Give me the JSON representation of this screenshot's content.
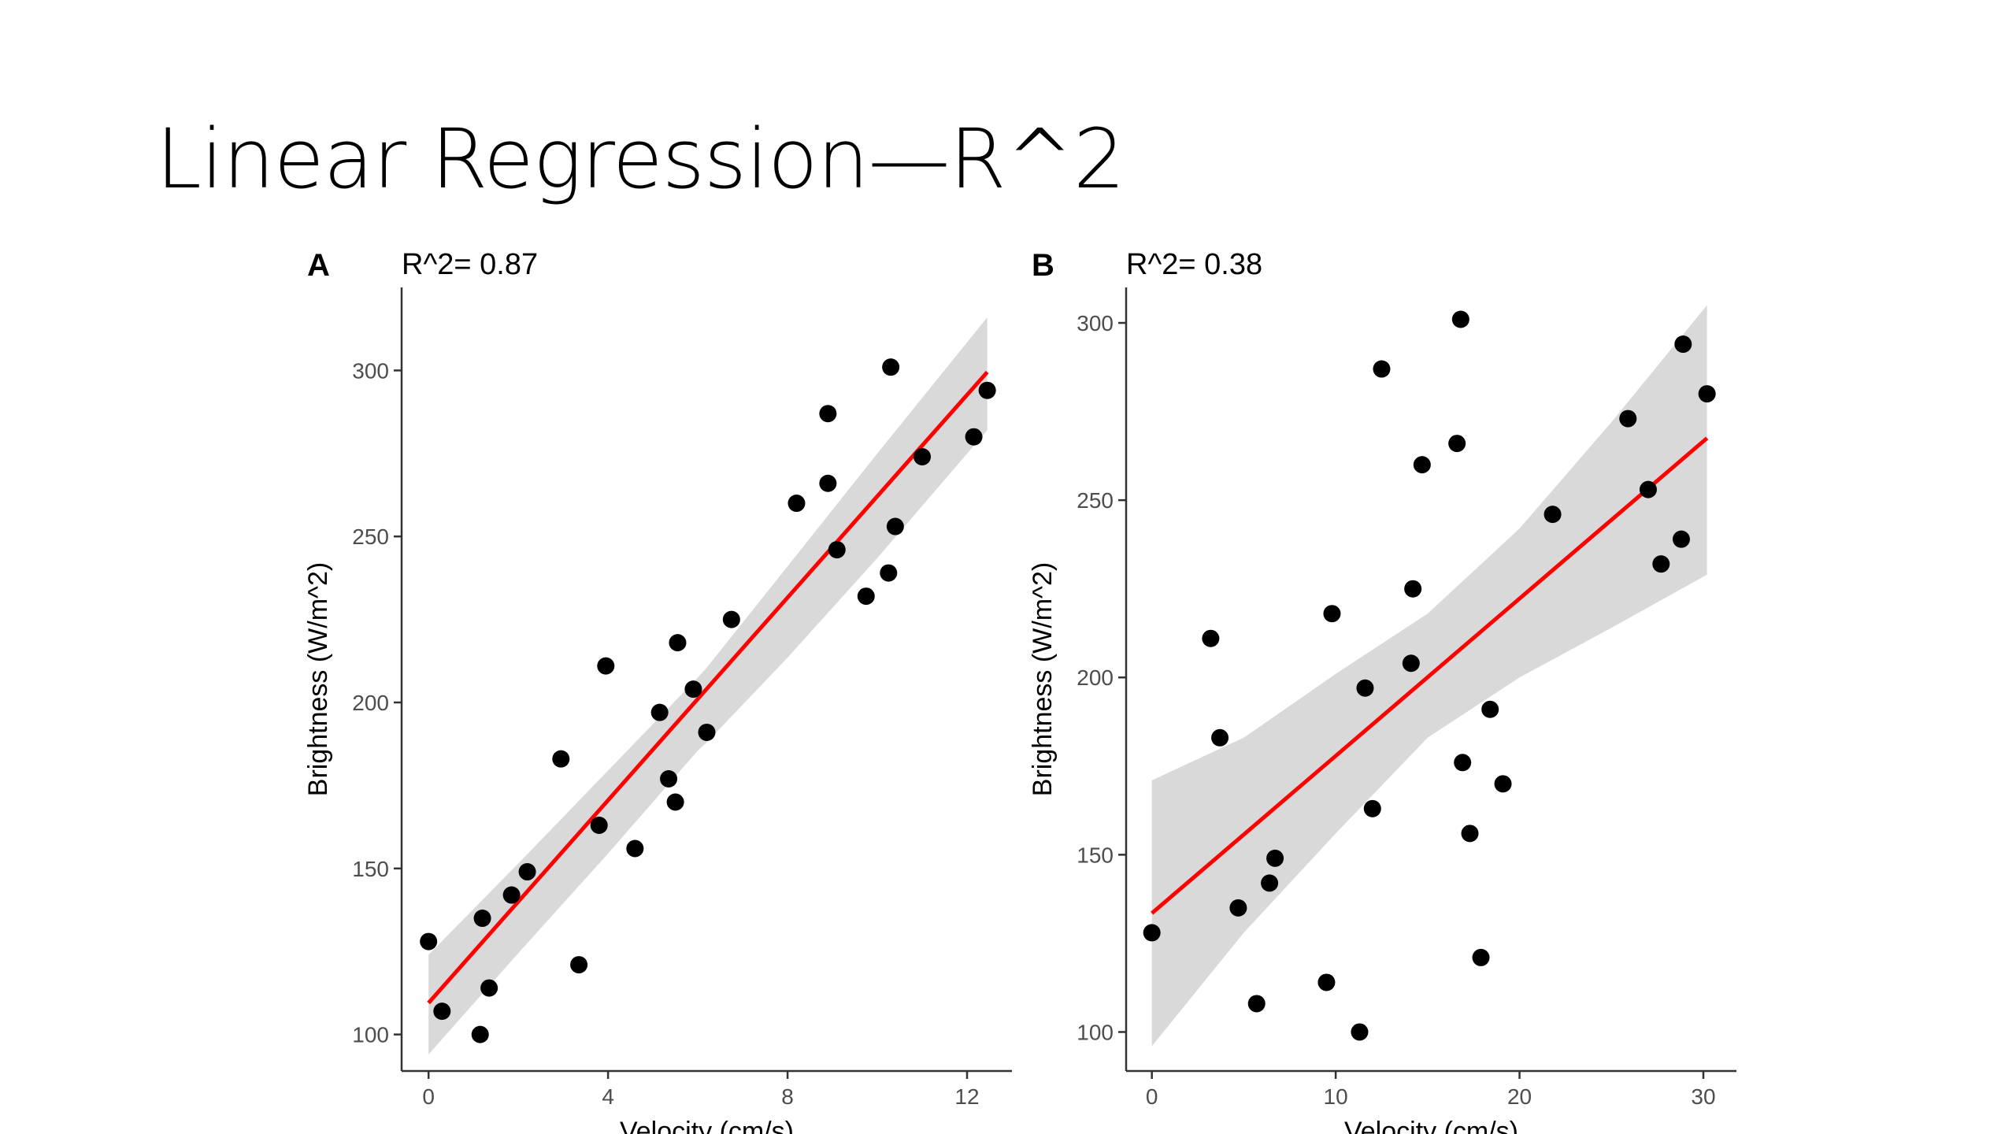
{
  "slide": {
    "title": "Linear Regression—R^2"
  },
  "colors": {
    "points": "#000000",
    "fit_line": "#ff0000",
    "confidence_band": "#d9d9d9",
    "axis": "#333333",
    "tick_label": "#4d4d4d"
  },
  "chart_data": [
    {
      "type": "scatter",
      "panel_label": "A",
      "title": "R^2= 0.87",
      "xlabel": "Velocity (cm/s)",
      "ylabel": "Brightness (W/m^2)",
      "xlim": [
        -0.6,
        13.0
      ],
      "ylim": [
        89,
        325
      ],
      "xticks": [
        0,
        4,
        8,
        12
      ],
      "yticks": [
        100,
        150,
        200,
        250,
        300
      ],
      "points": [
        {
          "x": 0.0,
          "y": 128
        },
        {
          "x": 0.3,
          "y": 107
        },
        {
          "x": 1.15,
          "y": 100
        },
        {
          "x": 1.2,
          "y": 135
        },
        {
          "x": 1.35,
          "y": 114
        },
        {
          "x": 1.85,
          "y": 142
        },
        {
          "x": 2.2,
          "y": 149
        },
        {
          "x": 2.95,
          "y": 183
        },
        {
          "x": 3.35,
          "y": 121
        },
        {
          "x": 3.8,
          "y": 163
        },
        {
          "x": 3.95,
          "y": 211
        },
        {
          "x": 4.6,
          "y": 156
        },
        {
          "x": 5.15,
          "y": 197
        },
        {
          "x": 5.35,
          "y": 177
        },
        {
          "x": 5.5,
          "y": 170
        },
        {
          "x": 5.55,
          "y": 218
        },
        {
          "x": 5.9,
          "y": 204
        },
        {
          "x": 6.2,
          "y": 191
        },
        {
          "x": 6.75,
          "y": 225
        },
        {
          "x": 8.2,
          "y": 260
        },
        {
          "x": 8.9,
          "y": 287
        },
        {
          "x": 8.9,
          "y": 266
        },
        {
          "x": 9.1,
          "y": 246
        },
        {
          "x": 9.75,
          "y": 232
        },
        {
          "x": 10.25,
          "y": 239
        },
        {
          "x": 10.3,
          "y": 301
        },
        {
          "x": 10.4,
          "y": 253
        },
        {
          "x": 11.0,
          "y": 274
        },
        {
          "x": 12.15,
          "y": 280
        },
        {
          "x": 12.45,
          "y": 294
        }
      ],
      "fit": {
        "x": [
          0.0,
          12.45
        ],
        "y": [
          109.5,
          299.5
        ]
      },
      "band": {
        "x": [
          0.0,
          2.0,
          4.0,
          6.0,
          6.2,
          8.0,
          10.0,
          12.45
        ],
        "upper": [
          124,
          151.5,
          179.5,
          207.5,
          210.5,
          241,
          275,
          316
        ],
        "lower": [
          94,
          124.5,
          154.5,
          185.5,
          188,
          213.5,
          243.5,
          282
        ]
      }
    },
    {
      "type": "scatter",
      "panel_label": "B",
      "title": "R^2= 0.38",
      "xlabel": "Velocity (cm/s)",
      "ylabel": "Brightness (W/m^2)",
      "xlim": [
        -1.4,
        31.8
      ],
      "ylim": [
        89,
        310
      ],
      "xticks": [
        0,
        10,
        20,
        30
      ],
      "yticks": [
        100,
        150,
        200,
        250,
        300
      ],
      "points": [
        {
          "x": 0.0,
          "y": 128
        },
        {
          "x": 3.2,
          "y": 211
        },
        {
          "x": 3.7,
          "y": 183
        },
        {
          "x": 4.7,
          "y": 135
        },
        {
          "x": 5.7,
          "y": 108
        },
        {
          "x": 6.4,
          "y": 142
        },
        {
          "x": 6.7,
          "y": 149
        },
        {
          "x": 9.5,
          "y": 114
        },
        {
          "x": 9.8,
          "y": 218
        },
        {
          "x": 11.3,
          "y": 100
        },
        {
          "x": 11.6,
          "y": 197
        },
        {
          "x": 12.0,
          "y": 163
        },
        {
          "x": 12.5,
          "y": 287
        },
        {
          "x": 14.1,
          "y": 204
        },
        {
          "x": 14.2,
          "y": 225
        },
        {
          "x": 14.7,
          "y": 260
        },
        {
          "x": 16.6,
          "y": 266
        },
        {
          "x": 16.8,
          "y": 301
        },
        {
          "x": 16.9,
          "y": 176
        },
        {
          "x": 17.3,
          "y": 156
        },
        {
          "x": 17.9,
          "y": 121
        },
        {
          "x": 18.4,
          "y": 191
        },
        {
          "x": 19.1,
          "y": 170
        },
        {
          "x": 21.8,
          "y": 246
        },
        {
          "x": 25.9,
          "y": 273
        },
        {
          "x": 27.0,
          "y": 253
        },
        {
          "x": 27.7,
          "y": 232
        },
        {
          "x": 28.8,
          "y": 239
        },
        {
          "x": 28.9,
          "y": 294
        },
        {
          "x": 30.2,
          "y": 280
        }
      ],
      "fit": {
        "x": [
          0.0,
          30.2
        ],
        "y": [
          133.5,
          267.5
        ]
      },
      "band": {
        "x": [
          0.0,
          5.0,
          10.0,
          15.0,
          20.0,
          25.0,
          30.2
        ],
        "upper": [
          171,
          183,
          201,
          218,
          242,
          272,
          305
        ],
        "lower": [
          96,
          128,
          156,
          183,
          200,
          214,
          229
        ]
      }
    }
  ]
}
